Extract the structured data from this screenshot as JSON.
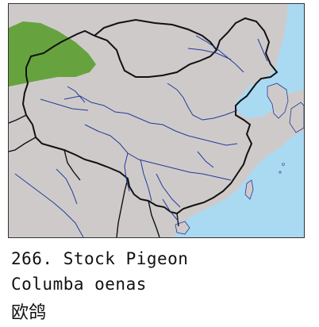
{
  "caption": {
    "number_line": "266. Stock Pigeon",
    "latin_name": "Columba oenas",
    "chinese_name": "欧鸽"
  },
  "colors": {
    "sea": "#aad9f2",
    "land": "#cfcaca",
    "range": "#66a33f",
    "border": "#111111",
    "river": "#1f3c99"
  },
  "map": {
    "features": [
      "species-range",
      "national-border",
      "rivers",
      "coastline",
      "islands"
    ]
  }
}
